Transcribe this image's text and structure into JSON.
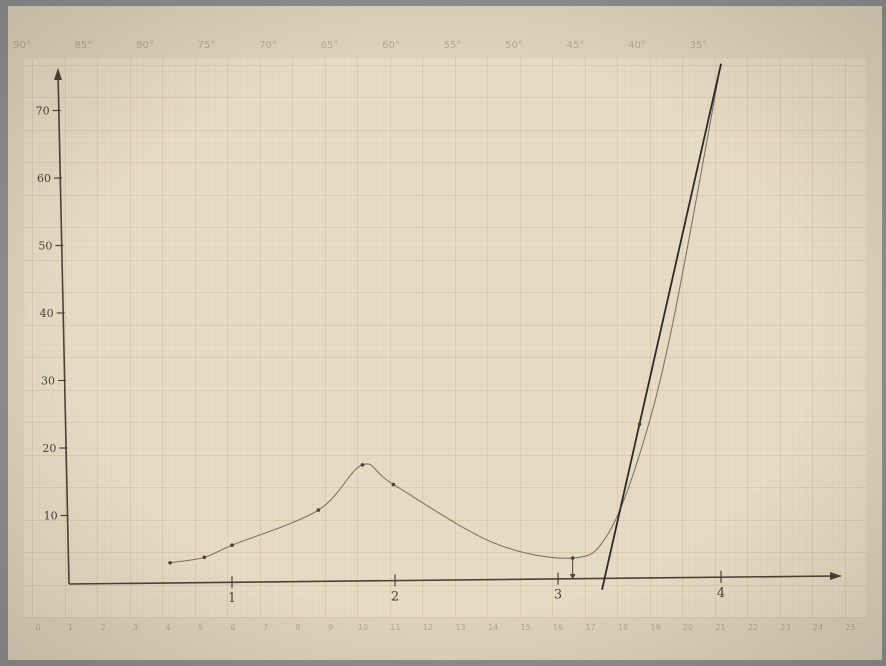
{
  "colors": {
    "paper": "#e6dcc5",
    "margin": "#ddd2ba",
    "grid_minor": "#e3c9a8",
    "grid_major": "#d9b58e",
    "ink": "#4a4338",
    "pen": "#2d2a2c",
    "pencil": "#6b6154"
  },
  "chart_data": {
    "type": "line",
    "title": "",
    "xlabel": "",
    "ylabel": "",
    "xlim": [
      0,
      4.5
    ],
    "ylim": [
      0,
      75
    ],
    "x_ticks": [
      {
        "value": 1,
        "label": "1"
      },
      {
        "value": 2,
        "label": "2"
      },
      {
        "value": 3,
        "label": "3"
      },
      {
        "value": 4,
        "label": "4"
      }
    ],
    "y_ticks": [
      {
        "value": 10,
        "label": "10"
      },
      {
        "value": 20,
        "label": "20"
      },
      {
        "value": 30,
        "label": "30"
      },
      {
        "value": 40,
        "label": "40"
      },
      {
        "value": 50,
        "label": "50"
      },
      {
        "value": 60,
        "label": "60"
      },
      {
        "value": 70,
        "label": "70"
      }
    ],
    "series": [
      {
        "style": "pencil-curve",
        "x": [
          0.62,
          0.83,
          1.0,
          1.53,
          1.8,
          1.99,
          2.6,
          3.09,
          3.3,
          3.5,
          3.7,
          4.0
        ],
        "y": [
          3.0,
          3.8,
          5.6,
          10.8,
          17.5,
          14.6,
          6.0,
          3.7,
          7.0,
          19.0,
          38.0,
          77.0
        ]
      },
      {
        "style": "pen-line",
        "x": [
          3.27,
          4.0
        ],
        "y": [
          -1.0,
          76.9
        ]
      }
    ],
    "marker_points": {
      "x": [
        0.62,
        0.83,
        1.0,
        1.53,
        1.8,
        1.99,
        3.09,
        3.5
      ],
      "y": [
        3.0,
        3.8,
        5.6,
        10.8,
        17.5,
        14.6,
        3.7,
        23.5
      ]
    },
    "annotations": [
      {
        "type": "drop-arrow",
        "x": 3.09,
        "y_from": 3.7,
        "y_to": 0
      }
    ],
    "grid": true,
    "legend": "none"
  },
  "paper_scales": {
    "top": [
      "90°",
      "85°",
      "80°",
      "75°",
      "70°",
      "65°",
      "60°",
      "55°",
      "50°",
      "45°",
      "40°",
      "35°"
    ],
    "bottom": [
      "0",
      "1",
      "2",
      "3",
      "4",
      "5",
      "6",
      "7",
      "8",
      "9",
      "10",
      "11",
      "12",
      "13",
      "14",
      "15",
      "16",
      "17",
      "18",
      "19",
      "20",
      "21",
      "22",
      "23",
      "24",
      "25"
    ]
  }
}
